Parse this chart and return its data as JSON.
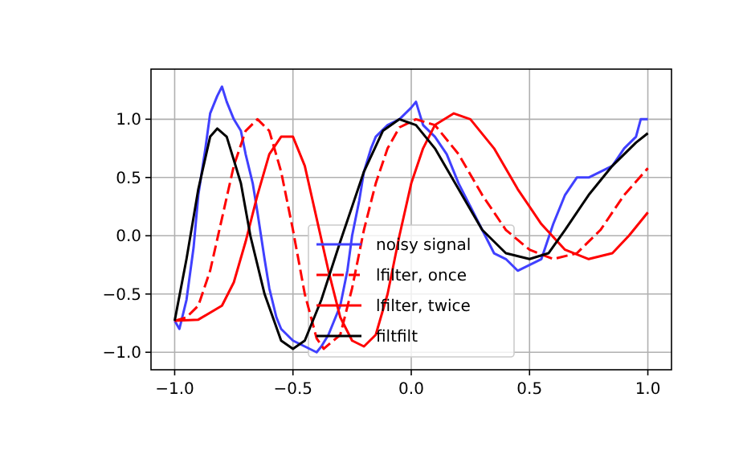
{
  "chart_data": {
    "type": "line",
    "xlim": [
      -1.1,
      1.1
    ],
    "ylim": [
      -1.15,
      1.43
    ],
    "xticks": [
      {
        "value": -1,
        "label": "−1.0"
      },
      {
        "value": -0.5,
        "label": "−0.5"
      },
      {
        "value": 0,
        "label": "0.0"
      },
      {
        "value": 0.5,
        "label": "0.5"
      },
      {
        "value": 1,
        "label": "1.0"
      }
    ],
    "yticks": [
      {
        "value": -1,
        "label": "−1.0"
      },
      {
        "value": -0.5,
        "label": "−0.5"
      },
      {
        "value": 0,
        "label": "0.0"
      },
      {
        "value": 0.5,
        "label": "0.5"
      },
      {
        "value": 1,
        "label": "1.0"
      }
    ],
    "grid": true,
    "legend": "bottom",
    "marker": "none",
    "series": [
      {
        "name": "noisy signal",
        "color": "#4040ff",
        "line_style": "solid",
        "x": [
          -1,
          -0.98,
          -0.95,
          -0.92,
          -0.9,
          -0.87,
          -0.85,
          -0.82,
          -0.8,
          -0.78,
          -0.75,
          -0.72,
          -0.7,
          -0.67,
          -0.65,
          -0.62,
          -0.6,
          -0.57,
          -0.55,
          -0.5,
          -0.45,
          -0.4,
          -0.38,
          -0.35,
          -0.3,
          -0.27,
          -0.25,
          -0.22,
          -0.2,
          -0.17,
          -0.15,
          -0.1,
          -0.05,
          0,
          0.02,
          0.05,
          0.1,
          0.15,
          0.2,
          0.25,
          0.3,
          0.35,
          0.4,
          0.45,
          0.5,
          0.55,
          0.6,
          0.65,
          0.7,
          0.75,
          0.8,
          0.85,
          0.9,
          0.95,
          0.97,
          1
        ],
        "values": [
          -0.73,
          -0.8,
          -0.55,
          -0.1,
          0.35,
          0.75,
          1.05,
          1.2,
          1.28,
          1.15,
          1.0,
          0.9,
          0.7,
          0.45,
          0.2,
          -0.2,
          -0.45,
          -0.7,
          -0.8,
          -0.9,
          -0.95,
          -1.0,
          -0.95,
          -0.85,
          -0.6,
          -0.3,
          0.0,
          0.3,
          0.55,
          0.75,
          0.85,
          0.95,
          1.0,
          1.1,
          1.15,
          0.95,
          0.85,
          0.7,
          0.45,
          0.25,
          0.05,
          -0.15,
          -0.2,
          -0.3,
          -0.25,
          -0.2,
          0.1,
          0.35,
          0.5,
          0.5,
          0.55,
          0.6,
          0.75,
          0.85,
          1.0,
          1.0
        ]
      },
      {
        "name": "lfilter, once",
        "color": "#ff0000",
        "line_style": "dashed",
        "x": [
          -1,
          -0.95,
          -0.9,
          -0.85,
          -0.8,
          -0.75,
          -0.7,
          -0.65,
          -0.6,
          -0.55,
          -0.5,
          -0.45,
          -0.4,
          -0.37,
          -0.3,
          -0.25,
          -0.2,
          -0.15,
          -0.1,
          -0.05,
          0.02,
          0.1,
          0.2,
          0.3,
          0.4,
          0.5,
          0.6,
          0.7,
          0.8,
          0.9,
          1
        ],
        "values": [
          -0.73,
          -0.7,
          -0.6,
          -0.3,
          0.15,
          0.6,
          0.9,
          1.0,
          0.9,
          0.55,
          0.05,
          -0.5,
          -0.88,
          -0.97,
          -0.85,
          -0.45,
          0.05,
          0.45,
          0.75,
          0.93,
          1.0,
          0.95,
          0.7,
          0.35,
          0.05,
          -0.12,
          -0.2,
          -0.15,
          0.05,
          0.35,
          0.58
        ]
      },
      {
        "name": "lfilter, twice",
        "color": "#ff0000",
        "line_style": "solid",
        "x": [
          -1,
          -0.9,
          -0.8,
          -0.75,
          -0.7,
          -0.65,
          -0.6,
          -0.55,
          -0.5,
          -0.45,
          -0.4,
          -0.35,
          -0.3,
          -0.25,
          -0.2,
          -0.15,
          -0.1,
          -0.05,
          0,
          0.05,
          0.1,
          0.18,
          0.25,
          0.35,
          0.45,
          0.55,
          0.65,
          0.75,
          0.85,
          0.92,
          1
        ],
        "values": [
          -0.73,
          -0.72,
          -0.6,
          -0.4,
          -0.05,
          0.35,
          0.7,
          0.85,
          0.85,
          0.6,
          0.15,
          -0.3,
          -0.7,
          -0.9,
          -0.95,
          -0.85,
          -0.5,
          0.0,
          0.45,
          0.75,
          0.95,
          1.05,
          1.0,
          0.75,
          0.4,
          0.1,
          -0.12,
          -0.2,
          -0.15,
          0.0,
          0.2
        ]
      },
      {
        "name": "filtfilt",
        "color": "#000000",
        "line_style": "solid",
        "x": [
          -1,
          -0.95,
          -0.9,
          -0.85,
          -0.82,
          -0.78,
          -0.72,
          -0.68,
          -0.62,
          -0.55,
          -0.5,
          -0.45,
          -0.38,
          -0.3,
          -0.2,
          -0.12,
          -0.05,
          0.02,
          0.1,
          0.2,
          0.3,
          0.4,
          0.5,
          0.58,
          0.65,
          0.75,
          0.85,
          0.95,
          1
        ],
        "values": [
          -0.73,
          -0.2,
          0.4,
          0.85,
          0.92,
          0.85,
          0.45,
          0.0,
          -0.5,
          -0.9,
          -0.97,
          -0.9,
          -0.55,
          -0.05,
          0.55,
          0.9,
          1.0,
          0.95,
          0.75,
          0.4,
          0.05,
          -0.15,
          -0.2,
          -0.15,
          0.05,
          0.35,
          0.6,
          0.8,
          0.88
        ]
      }
    ]
  }
}
